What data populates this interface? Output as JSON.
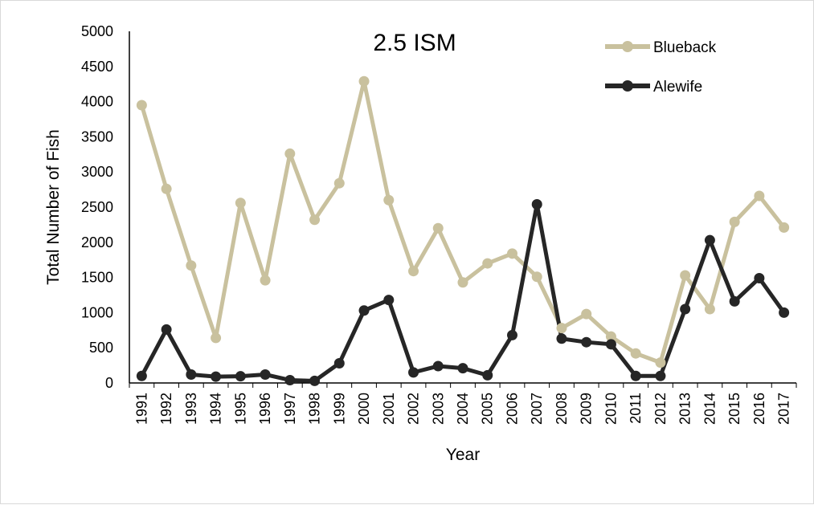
{
  "chart_data": {
    "type": "line",
    "title": "2.5 ISM",
    "xlabel": "Year",
    "ylabel": "Total Number of Fish",
    "ylim": [
      0,
      5000
    ],
    "yticks": [
      0,
      500,
      1000,
      1500,
      2000,
      2500,
      3000,
      3500,
      4000,
      4500,
      5000
    ],
    "x": [
      "1991",
      "1992",
      "1993",
      "1994",
      "1995",
      "1996",
      "1997",
      "1998",
      "1999",
      "2000",
      "2001",
      "2002",
      "2003",
      "2004",
      "2005",
      "2006",
      "2007",
      "2008",
      "2009",
      "2010",
      "2011",
      "2012",
      "2013",
      "2014",
      "2015",
      "2016",
      "2017"
    ],
    "grid": false,
    "legend_position": "top-right",
    "series": [
      {
        "name": "Blueback",
        "color": "#c9c19e",
        "values": [
          3950,
          2760,
          1670,
          640,
          2560,
          1460,
          3260,
          2320,
          2840,
          4290,
          2600,
          1590,
          2200,
          1430,
          1700,
          1840,
          1510,
          780,
          980,
          660,
          420,
          290,
          1530,
          1050,
          2290,
          2660,
          2210
        ]
      },
      {
        "name": "Alewife",
        "color": "#262626",
        "values": [
          100,
          760,
          120,
          90,
          95,
          120,
          40,
          30,
          280,
          1030,
          1180,
          150,
          240,
          210,
          110,
          680,
          2540,
          630,
          580,
          550,
          100,
          100,
          1050,
          2030,
          1160,
          1490,
          1000
        ]
      }
    ]
  }
}
